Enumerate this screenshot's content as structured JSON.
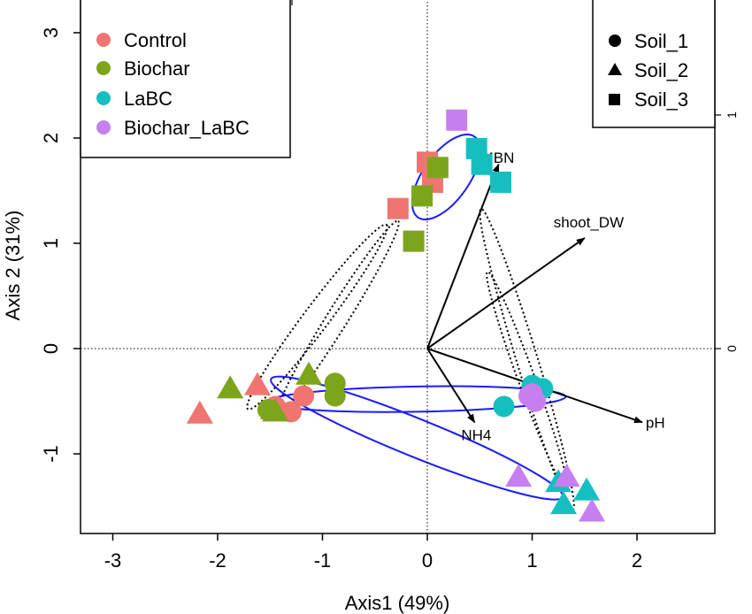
{
  "chart_data": {
    "type": "scatter",
    "xlabel": "Axis1 (49%)",
    "ylabel": "Axis 2 (31%)",
    "xlim": [
      -3.3,
      2.75
    ],
    "ylim": [
      -1.75,
      3.2
    ],
    "x_ticks": [
      "-3",
      "-2",
      "-1",
      "0",
      "1",
      "2"
    ],
    "y_ticks": [
      "-1",
      "0",
      "1",
      "2",
      "3"
    ],
    "right_axis_ticks": [
      "0",
      "1"
    ],
    "grid": false,
    "reference_lines": "dotted lines at x=0 and y=0",
    "legend_treatments": {
      "placement": "top-left",
      "entries": [
        {
          "label": "Control",
          "color": "#f07470"
        },
        {
          "label": "Biochar",
          "color": "#7ca51c"
        },
        {
          "label": "LaBC",
          "color": "#16bfbf"
        },
        {
          "label": "Biochar_LaBC",
          "color": "#c77ff0"
        }
      ]
    },
    "legend_soils": {
      "placement": "top-right",
      "entries": [
        {
          "label": "Soil_1",
          "shape": "circle"
        },
        {
          "label": "Soil_2",
          "shape": "triangle"
        },
        {
          "label": "Soil_3",
          "shape": "square"
        }
      ]
    },
    "vectors": [
      {
        "label": "MBN",
        "x": 0.68,
        "y": 1.75
      },
      {
        "label": "shoot_DW",
        "x": 1.5,
        "y": 1.05
      },
      {
        "label": "pH",
        "x": 2.05,
        "y": -0.7
      },
      {
        "label": "NH4",
        "x": 0.45,
        "y": -0.7
      }
    ],
    "ellipses": [
      {
        "style": "solid",
        "color": "#1a1aff",
        "cx": 0.18,
        "cy": 1.63,
        "rx": 0.47,
        "ry": 0.22,
        "angle": 55
      },
      {
        "style": "solid",
        "color": "#1a1aff",
        "cx": -0.1,
        "cy": -0.48,
        "rx": 1.42,
        "ry": 0.12,
        "angle": 1
      },
      {
        "style": "solid",
        "color": "#1a1aff",
        "cx": -0.1,
        "cy": -0.85,
        "rx": 1.5,
        "ry": 0.18,
        "angle": -22
      },
      {
        "style": "dotted",
        "color": "#000000",
        "cx": -1.05,
        "cy": 0.3,
        "rx": 1.1,
        "ry": 0.12,
        "angle": 53
      },
      {
        "style": "dotted",
        "color": "#000000",
        "cx": -0.85,
        "cy": 0.3,
        "rx": 1.08,
        "ry": 0.1,
        "angle": 58
      },
      {
        "style": "dotted",
        "color": "#000000",
        "cx": 0.95,
        "cy": -0.1,
        "rx": 1.5,
        "ry": 0.1,
        "angle": -73
      },
      {
        "style": "dotted",
        "color": "#000000",
        "cx": 0.95,
        "cy": -0.3,
        "rx": 1.1,
        "ry": 0.08,
        "angle": -70
      }
    ],
    "series": [
      {
        "name": "Control",
        "color": "#f07470",
        "points": [
          {
            "x": -1.45,
            "y": -0.55,
            "shape": "circle"
          },
          {
            "x": -1.3,
            "y": -0.6,
            "shape": "circle"
          },
          {
            "x": -1.18,
            "y": -0.45,
            "shape": "circle"
          },
          {
            "x": -2.17,
            "y": -0.62,
            "shape": "triangle"
          },
          {
            "x": -1.62,
            "y": -0.35,
            "shape": "triangle"
          },
          {
            "x": -1.47,
            "y": -0.58,
            "shape": "triangle"
          },
          {
            "x": 0.0,
            "y": 1.77,
            "shape": "square"
          },
          {
            "x": 0.05,
            "y": 1.58,
            "shape": "square"
          },
          {
            "x": -0.28,
            "y": 1.33,
            "shape": "square"
          }
        ]
      },
      {
        "name": "Biochar",
        "color": "#7ca51c",
        "points": [
          {
            "x": -0.88,
            "y": -0.33,
            "shape": "circle"
          },
          {
            "x": -0.88,
            "y": -0.45,
            "shape": "circle"
          },
          {
            "x": -1.52,
            "y": -0.58,
            "shape": "circle"
          },
          {
            "x": -1.88,
            "y": -0.38,
            "shape": "triangle"
          },
          {
            "x": -1.13,
            "y": -0.25,
            "shape": "triangle"
          },
          {
            "x": -1.45,
            "y": -0.6,
            "shape": "triangle"
          },
          {
            "x": 0.1,
            "y": 1.72,
            "shape": "square"
          },
          {
            "x": -0.05,
            "y": 1.45,
            "shape": "square"
          },
          {
            "x": -0.13,
            "y": 1.02,
            "shape": "square"
          }
        ]
      },
      {
        "name": "LaBC",
        "color": "#16bfbf",
        "points": [
          {
            "x": 1.0,
            "y": -0.35,
            "shape": "circle"
          },
          {
            "x": 1.1,
            "y": -0.38,
            "shape": "circle"
          },
          {
            "x": 0.73,
            "y": -0.55,
            "shape": "circle"
          },
          {
            "x": 1.52,
            "y": -1.35,
            "shape": "triangle"
          },
          {
            "x": 1.25,
            "y": -1.27,
            "shape": "triangle"
          },
          {
            "x": 1.3,
            "y": -1.48,
            "shape": "triangle"
          },
          {
            "x": 0.47,
            "y": 1.9,
            "shape": "square"
          },
          {
            "x": 0.52,
            "y": 1.75,
            "shape": "square"
          },
          {
            "x": 0.7,
            "y": 1.58,
            "shape": "square"
          }
        ]
      },
      {
        "name": "Biochar_LaBC",
        "color": "#c77ff0",
        "points": [
          {
            "x": 0.97,
            "y": -0.45,
            "shape": "circle"
          },
          {
            "x": 1.03,
            "y": -0.5,
            "shape": "circle"
          },
          {
            "x": 1.0,
            "y": -0.43,
            "shape": "circle"
          },
          {
            "x": 0.87,
            "y": -1.22,
            "shape": "triangle"
          },
          {
            "x": 1.33,
            "y": -1.22,
            "shape": "triangle"
          },
          {
            "x": 1.57,
            "y": -1.55,
            "shape": "triangle"
          },
          {
            "x": 0.28,
            "y": 2.17,
            "shape": "square"
          }
        ]
      }
    ]
  }
}
